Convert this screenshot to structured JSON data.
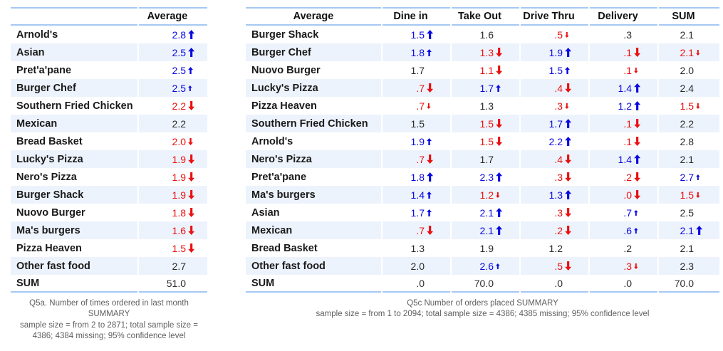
{
  "colors": {
    "up_arrow": "#0909e0",
    "down_arrow": "#ea1010",
    "stripe": "#edf3fc",
    "border": "#a5c8f2",
    "caption": "#5f5f5f"
  },
  "left_table": {
    "header_label": "Average",
    "rows": [
      {
        "label": "Arnold's",
        "value": "2.8",
        "arrow": "u3"
      },
      {
        "label": "Asian",
        "value": "2.5",
        "arrow": "u3"
      },
      {
        "label": "Pret'a'pane",
        "value": "2.5",
        "arrow": "u2"
      },
      {
        "label": "Burger Chef",
        "value": "2.5",
        "arrow": "u1"
      },
      {
        "label": "Southern Fried Chicken",
        "value": "2.2",
        "arrow": "d3"
      },
      {
        "label": "Mexican",
        "value": "2.2",
        "arrow": null
      },
      {
        "label": "Bread Basket",
        "value": "2.0",
        "arrow": "d2"
      },
      {
        "label": "Lucky's Pizza",
        "value": "1.9",
        "arrow": "d3"
      },
      {
        "label": "Nero's Pizza",
        "value": "1.9",
        "arrow": "d3"
      },
      {
        "label": "Burger Shack",
        "value": "1.9",
        "arrow": "d3"
      },
      {
        "label": "Nuovo Burger",
        "value": "1.8",
        "arrow": "d3"
      },
      {
        "label": "Ma's burgers",
        "value": "1.6",
        "arrow": "d3"
      },
      {
        "label": "Pizza Heaven",
        "value": "1.5",
        "arrow": "d3"
      },
      {
        "label": "Other fast food",
        "value": "2.7",
        "arrow": null
      },
      {
        "label": "SUM",
        "value": "51.0",
        "arrow": null
      }
    ],
    "caption_lines": [
      "Q5a. Number of times ordered in last month",
      "SUMMARY",
      "sample size = from 2 to 2871; total sample size =",
      "4386; 4384 missing; 95% confidence level"
    ]
  },
  "right_table": {
    "headers": [
      "Average",
      "Dine in",
      "Take Out",
      "Drive Thru",
      "Delivery",
      "SUM"
    ],
    "rows": [
      {
        "label": "Burger Shack",
        "cells": [
          {
            "v": "1.5",
            "a": "u3"
          },
          {
            "v": "1.6",
            "a": null
          },
          {
            "v": ".5",
            "a": "d1"
          },
          {
            "v": ".3",
            "a": null
          },
          {
            "v": "2.1",
            "a": null
          }
        ]
      },
      {
        "label": "Burger Chef",
        "cells": [
          {
            "v": "1.8",
            "a": "u2"
          },
          {
            "v": "1.3",
            "a": "d3"
          },
          {
            "v": "1.9",
            "a": "u3"
          },
          {
            "v": ".1",
            "a": "d3"
          },
          {
            "v": "2.1",
            "a": "d1"
          }
        ]
      },
      {
        "label": "Nuovo Burger",
        "cells": [
          {
            "v": "1.7",
            "a": null
          },
          {
            "v": "1.1",
            "a": "d3"
          },
          {
            "v": "1.5",
            "a": "u2"
          },
          {
            "v": ".1",
            "a": "d1"
          },
          {
            "v": "2.0",
            "a": null
          }
        ]
      },
      {
        "label": "Lucky's Pizza",
        "cells": [
          {
            "v": ".7",
            "a": "d3"
          },
          {
            "v": "1.7",
            "a": "u2"
          },
          {
            "v": ".4",
            "a": "d3"
          },
          {
            "v": "1.4",
            "a": "u3"
          },
          {
            "v": "2.4",
            "a": null
          }
        ]
      },
      {
        "label": "Pizza Heaven",
        "cells": [
          {
            "v": ".7",
            "a": "d1"
          },
          {
            "v": "1.3",
            "a": null
          },
          {
            "v": ".3",
            "a": "d1"
          },
          {
            "v": "1.2",
            "a": "u3"
          },
          {
            "v": "1.5",
            "a": "d1"
          }
        ]
      },
      {
        "label": "Southern Fried Chicken",
        "cells": [
          {
            "v": "1.5",
            "a": null
          },
          {
            "v": "1.5",
            "a": "d3"
          },
          {
            "v": "1.7",
            "a": "u3"
          },
          {
            "v": ".1",
            "a": "d3"
          },
          {
            "v": "2.2",
            "a": null
          }
        ]
      },
      {
        "label": "Arnold's",
        "cells": [
          {
            "v": "1.9",
            "a": "u2"
          },
          {
            "v": "1.5",
            "a": "d3"
          },
          {
            "v": "2.2",
            "a": "u3"
          },
          {
            "v": ".1",
            "a": "d3"
          },
          {
            "v": "2.8",
            "a": null
          }
        ]
      },
      {
        "label": "Nero's Pizza",
        "cells": [
          {
            "v": ".7",
            "a": "d3"
          },
          {
            "v": "1.7",
            "a": null
          },
          {
            "v": ".4",
            "a": "d3"
          },
          {
            "v": "1.4",
            "a": "u3"
          },
          {
            "v": "2.1",
            "a": null
          }
        ]
      },
      {
        "label": "Pret'a'pane",
        "cells": [
          {
            "v": "1.8",
            "a": "u3"
          },
          {
            "v": "2.3",
            "a": "u3"
          },
          {
            "v": ".3",
            "a": "d3"
          },
          {
            "v": ".2",
            "a": "d3"
          },
          {
            "v": "2.7",
            "a": "u1"
          }
        ]
      },
      {
        "label": "Ma's burgers",
        "cells": [
          {
            "v": "1.4",
            "a": "u2"
          },
          {
            "v": "1.2",
            "a": "d1"
          },
          {
            "v": "1.3",
            "a": "u3"
          },
          {
            "v": ".0",
            "a": "d3"
          },
          {
            "v": "1.5",
            "a": "d1"
          }
        ]
      },
      {
        "label": "Asian",
        "cells": [
          {
            "v": "1.7",
            "a": "u2"
          },
          {
            "v": "2.1",
            "a": "u3"
          },
          {
            "v": ".3",
            "a": "d3"
          },
          {
            "v": ".7",
            "a": "u1"
          },
          {
            "v": "2.5",
            "a": null
          }
        ]
      },
      {
        "label": "Mexican",
        "cells": [
          {
            "v": ".7",
            "a": "d3"
          },
          {
            "v": "2.1",
            "a": "u3"
          },
          {
            "v": ".2",
            "a": "d3"
          },
          {
            "v": ".6",
            "a": "u1"
          },
          {
            "v": "2.1",
            "a": "u3"
          }
        ]
      },
      {
        "label": "Bread Basket",
        "cells": [
          {
            "v": "1.3",
            "a": null
          },
          {
            "v": "1.9",
            "a": null
          },
          {
            "v": "1.2",
            "a": null
          },
          {
            "v": ".2",
            "a": null
          },
          {
            "v": "2.1",
            "a": null
          }
        ]
      },
      {
        "label": "Other fast food",
        "cells": [
          {
            "v": "2.0",
            "a": null
          },
          {
            "v": "2.6",
            "a": "u1"
          },
          {
            "v": ".5",
            "a": "d3"
          },
          {
            "v": ".3",
            "a": "d1"
          },
          {
            "v": "2.3",
            "a": null
          }
        ]
      },
      {
        "label": "SUM",
        "cells": [
          {
            "v": ".0",
            "a": null
          },
          {
            "v": "70.0",
            "a": null
          },
          {
            "v": ".0",
            "a": null
          },
          {
            "v": ".0",
            "a": null
          },
          {
            "v": "70.0",
            "a": null
          }
        ]
      }
    ],
    "caption_lines": [
      "Q5c Number of orders placed SUMMARY",
      "sample size = from 1 to 2094; total sample size = 4386; 4385 missing; 95% confidence level"
    ]
  }
}
